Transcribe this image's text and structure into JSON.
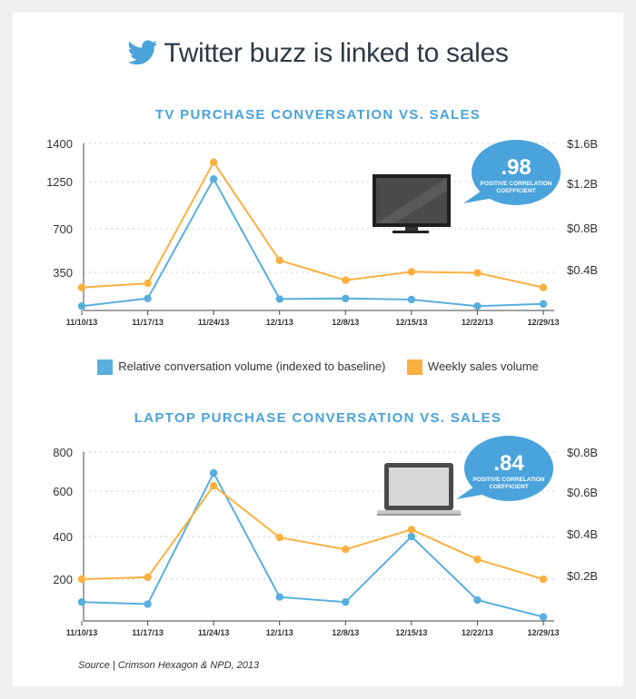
{
  "title": "Twitter buzz is linked to sales",
  "legend": {
    "conversation": "Relative conversation volume (indexed to baseline)",
    "sales": "Weekly sales volume"
  },
  "source": "Source | Crimson Hexagon & NPD, 2013",
  "colors": {
    "conversation": "#59aede",
    "sales": "#fbb040",
    "accent": "#4aa3da"
  },
  "icons": {
    "logo": "twitter-bird-icon",
    "tv": "tv-icon",
    "laptop": "laptop-icon"
  },
  "chart_data": [
    {
      "type": "line",
      "title": "TV PURCHASE CONVERSATION VS. SALES",
      "x": [
        "11/10/13",
        "11/17/13",
        "11/24/13",
        "12/1/13",
        "12/8/13",
        "12/15/13",
        "12/22/13",
        "12/29/13"
      ],
      "y_left_ticks": [
        "1400",
        "1250",
        "700",
        "350"
      ],
      "y_right_ticks": [
        "$1.6B",
        "$1.2B",
        "$0.8B",
        "$0.4B"
      ],
      "series": [
        {
          "name": "Relative conversation volume (indexed to baseline)",
          "axis": "left",
          "values": [
            40,
            110,
            1260,
            105,
            110,
            100,
            40,
            60
          ]
        },
        {
          "name": "Weekly sales volume",
          "axis": "right",
          "values": [
            0.22,
            0.26,
            1.42,
            0.48,
            0.29,
            0.37,
            0.36,
            0.22
          ]
        }
      ],
      "annotation": {
        "value": ".98",
        "label_line1": "POSITIVE CORRELATION",
        "label_line2": "COEFFICIENT"
      },
      "grid": true
    },
    {
      "type": "line",
      "title": "LAPTOP PURCHASE CONVERSATION VS. SALES",
      "x": [
        "11/10/13",
        "11/17/13",
        "11/24/13",
        "12/1/13",
        "12/8/13",
        "12/15/13",
        "12/22/13",
        "12/29/13"
      ],
      "y_left_ticks": [
        "800",
        "600",
        "400",
        "200"
      ],
      "y_right_ticks": [
        "$0.8B",
        "$0.6B",
        "$0.4B",
        "$0.2B"
      ],
      "series": [
        {
          "name": "Relative conversation volume (indexed to baseline)",
          "axis": "left",
          "values": [
            95,
            85,
            745,
            120,
            95,
            425,
            105,
            20
          ]
        },
        {
          "name": "Weekly sales volume",
          "axis": "right",
          "values": [
            0.21,
            0.22,
            0.68,
            0.42,
            0.36,
            0.46,
            0.31,
            0.21
          ]
        }
      ],
      "annotation": {
        "value": ".84",
        "label_line1": "POSITIVE CORRELATION",
        "label_line2": "COEFFICIENT"
      },
      "grid": true
    }
  ]
}
